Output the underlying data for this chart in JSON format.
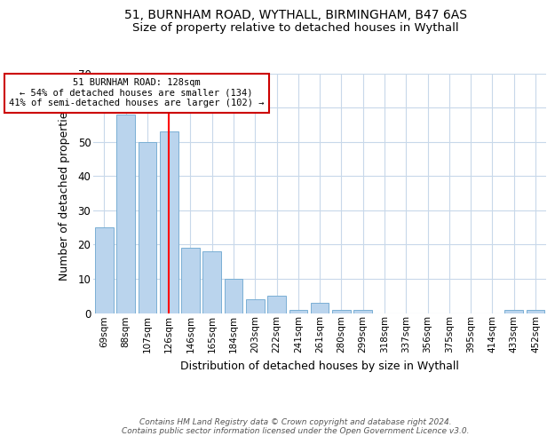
{
  "title_line1": "51, BURNHAM ROAD, WYTHALL, BIRMINGHAM, B47 6AS",
  "title_line2": "Size of property relative to detached houses in Wythall",
  "xlabel": "Distribution of detached houses by size in Wythall",
  "ylabel": "Number of detached properties",
  "categories": [
    "69sqm",
    "88sqm",
    "107sqm",
    "126sqm",
    "146sqm",
    "165sqm",
    "184sqm",
    "203sqm",
    "222sqm",
    "241sqm",
    "261sqm",
    "280sqm",
    "299sqm",
    "318sqm",
    "337sqm",
    "356sqm",
    "375sqm",
    "395sqm",
    "414sqm",
    "433sqm",
    "452sqm"
  ],
  "values": [
    25,
    58,
    50,
    53,
    19,
    18,
    10,
    4,
    5,
    1,
    3,
    1,
    1,
    0,
    0,
    0,
    0,
    0,
    0,
    1,
    1
  ],
  "bar_color": "#bad4ed",
  "bar_edgecolor": "#7aafd4",
  "red_line_index": 3,
  "annotation_text": "51 BURNHAM ROAD: 128sqm\n← 54% of detached houses are smaller (134)\n41% of semi-detached houses are larger (102) →",
  "annotation_box_color": "#ffffff",
  "annotation_box_edgecolor": "#cc0000",
  "ylim": [
    0,
    70
  ],
  "yticks": [
    0,
    10,
    20,
    30,
    40,
    50,
    60,
    70
  ],
  "footer_line1": "Contains HM Land Registry data © Crown copyright and database right 2024.",
  "footer_line2": "Contains public sector information licensed under the Open Government Licence v3.0.",
  "background_color": "#ffffff",
  "grid_color": "#c8d8ea",
  "title_fontsize": 10,
  "subtitle_fontsize": 9.5
}
